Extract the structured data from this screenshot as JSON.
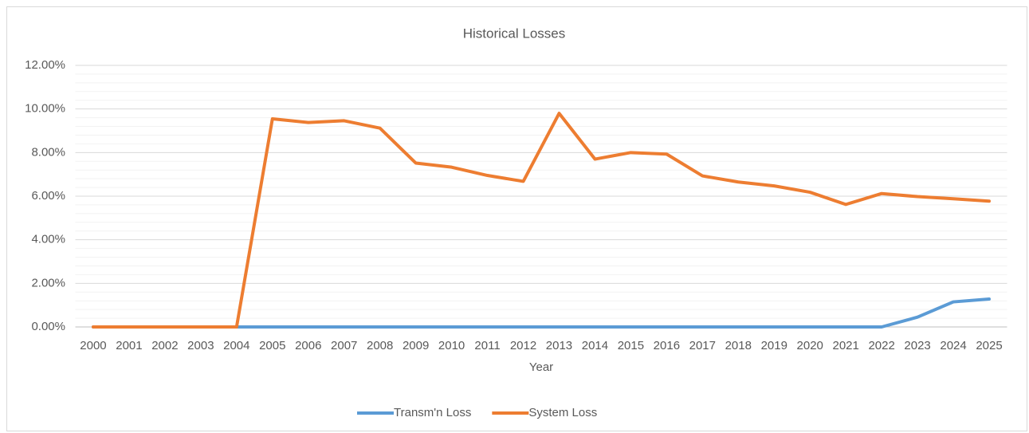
{
  "chart_data": {
    "type": "line",
    "title": "Historical Losses",
    "x_label": "Year",
    "categories": [
      "2000",
      "2001",
      "2002",
      "2003",
      "2004",
      "2005",
      "2006",
      "2007",
      "2008",
      "2009",
      "2010",
      "2011",
      "2012",
      "2013",
      "2014",
      "2015",
      "2016",
      "2017",
      "2018",
      "2019",
      "2020",
      "2021",
      "2022",
      "2023",
      "2024",
      "2025"
    ],
    "series": [
      {
        "name": "Transm'n Loss",
        "color": "#5b9bd5",
        "values": [
          0,
          0,
          0,
          0,
          0,
          0,
          0,
          0,
          0,
          0,
          0,
          0,
          0,
          0,
          0,
          0,
          0,
          0,
          0,
          0,
          0,
          0,
          0,
          0.45,
          1.15,
          1.28
        ]
      },
      {
        "name": "System Loss",
        "color": "#ed7d31",
        "values": [
          0,
          0,
          0,
          0,
          0,
          9.55,
          9.38,
          9.46,
          9.12,
          7.52,
          7.33,
          6.95,
          6.68,
          9.8,
          7.7,
          8.0,
          7.93,
          6.93,
          6.65,
          6.47,
          6.18,
          5.62,
          6.12,
          5.98,
          5.88,
          5.77
        ]
      }
    ],
    "ylim": [
      0,
      12
    ],
    "yticks": [
      {
        "value": 0,
        "label": "0.00%"
      },
      {
        "value": 2,
        "label": "2.00%"
      },
      {
        "value": 4,
        "label": "4.00%"
      },
      {
        "value": 6,
        "label": "6.00%"
      },
      {
        "value": 8,
        "label": "8.00%"
      },
      {
        "value": 10,
        "label": "10.00%"
      },
      {
        "value": 12,
        "label": "12.00%"
      }
    ],
    "grid": true,
    "minor_grid": true,
    "legend": "bottom"
  }
}
